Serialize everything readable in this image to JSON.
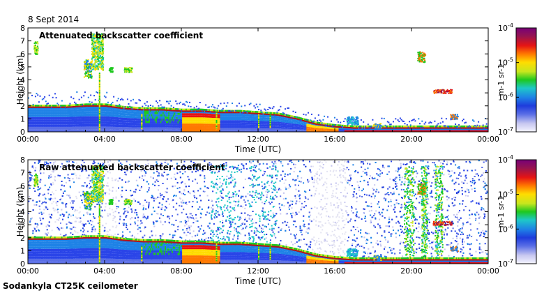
{
  "date": "8 Sept 2014",
  "footer": "Sodankyla CT25K ceilometer",
  "colors": {
    "background_noise": "#2a45e8",
    "layer": "#1ec81e",
    "aerosol_top": "#b41414",
    "colormap": [
      "#f4f4ff",
      "#c8c8f0",
      "#5a6ee6",
      "#1e3cdc",
      "#1e82e6",
      "#1ec8c8",
      "#1ec81e",
      "#c8e61e",
      "#ffdc00",
      "#ff7800",
      "#e61414",
      "#961450",
      "#780078"
    ]
  },
  "chart_data": [
    {
      "type": "heatmap",
      "title": "Attenuated backscatter coefficient",
      "xlabel": "Time (UTC)",
      "ylabel": "Height (km)",
      "x_ticks": [
        "00:00",
        "04:00",
        "08:00",
        "12:00",
        "16:00",
        "20:00",
        "00:00"
      ],
      "y_ticks": [
        "0",
        "1",
        "2",
        "3",
        "4",
        "5",
        "6",
        "7",
        "8"
      ],
      "xlim_hours": [
        0,
        24
      ],
      "ylim_km": [
        0,
        8
      ],
      "colorbar": {
        "label": "m-1 sr-1",
        "scale": "log",
        "range": [
          1e-07,
          0.0001
        ],
        "ticks": [
          {
            "base": "10",
            "exp": "-4"
          },
          {
            "base": "10",
            "exp": "-5"
          },
          {
            "base": "10",
            "exp": "-6"
          },
          {
            "base": "10",
            "exp": "-7"
          }
        ]
      },
      "layer_top_km": {
        "hours": [
          0,
          1,
          2,
          3,
          4,
          5,
          6,
          7,
          8,
          9,
          10,
          11,
          12,
          13,
          14,
          15,
          16,
          17,
          18,
          19,
          20,
          21,
          22,
          23,
          24
        ],
        "height": [
          1.9,
          1.9,
          1.9,
          2.0,
          2.0,
          1.8,
          1.7,
          1.7,
          1.6,
          1.6,
          1.5,
          1.5,
          1.4,
          1.3,
          1.0,
          0.6,
          0.4,
          0.3,
          0.3,
          0.3,
          0.3,
          0.3,
          0.3,
          0.3,
          0.3
        ]
      },
      "raw": false
    },
    {
      "type": "heatmap",
      "title": "Raw attenuated backscatter coefficient",
      "xlabel": "Time (UTC)",
      "ylabel": "Height (km)",
      "x_ticks": [
        "00:00",
        "04:00",
        "08:00",
        "12:00",
        "16:00",
        "20:00",
        "00:00"
      ],
      "y_ticks": [
        "0",
        "1",
        "2",
        "3",
        "4",
        "5",
        "6",
        "7",
        "8"
      ],
      "xlim_hours": [
        0,
        24
      ],
      "ylim_km": [
        0,
        8
      ],
      "colorbar": {
        "label": "m-1 sr-1",
        "scale": "log",
        "range": [
          1e-07,
          0.0001
        ],
        "ticks": [
          {
            "base": "10",
            "exp": "-4"
          },
          {
            "base": "10",
            "exp": "-5"
          },
          {
            "base": "10",
            "exp": "-6"
          },
          {
            "base": "10",
            "exp": "-7"
          }
        ]
      },
      "layer_top_km": {
        "hours": [
          0,
          1,
          2,
          3,
          4,
          5,
          6,
          7,
          8,
          9,
          10,
          11,
          12,
          13,
          14,
          15,
          16,
          17,
          18,
          19,
          20,
          21,
          22,
          23,
          24
        ],
        "height": [
          1.9,
          1.9,
          1.9,
          2.0,
          2.0,
          1.8,
          1.7,
          1.7,
          1.6,
          1.6,
          1.5,
          1.5,
          1.4,
          1.3,
          1.0,
          0.6,
          0.4,
          0.3,
          0.3,
          0.3,
          0.3,
          0.3,
          0.3,
          0.3,
          0.3
        ]
      },
      "raw": true
    }
  ]
}
